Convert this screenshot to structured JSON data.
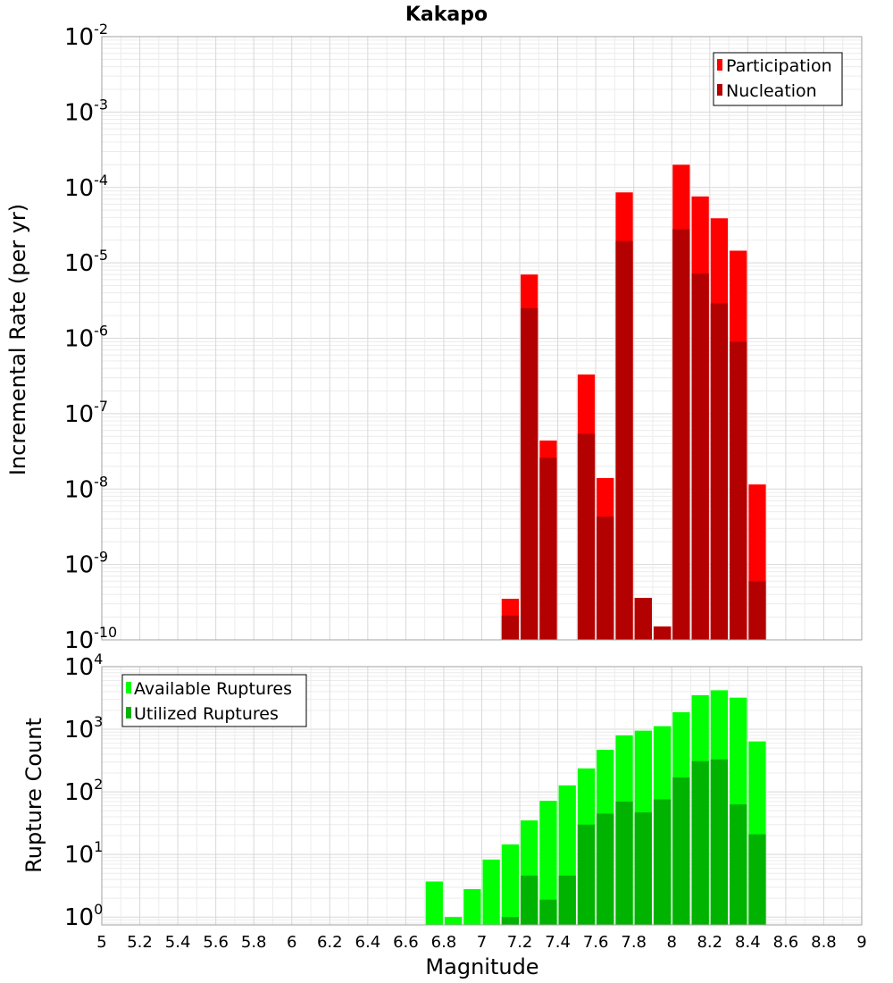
{
  "chart_data": [
    {
      "type": "bar",
      "title": "Kakapo",
      "ylabel": "Incremental Rate (per yr)",
      "yscale": "log",
      "ylim": [
        1e-10,
        0.01
      ],
      "yticks": [
        {
          "base": "10",
          "exp": "-10",
          "value": 1e-10
        },
        {
          "base": "10",
          "exp": "-9",
          "value": 1e-09
        },
        {
          "base": "10",
          "exp": "-8",
          "value": 1e-08
        },
        {
          "base": "10",
          "exp": "-7",
          "value": 1e-07
        },
        {
          "base": "10",
          "exp": "-6",
          "value": 1e-06
        },
        {
          "base": "10",
          "exp": "-5",
          "value": 1e-05
        },
        {
          "base": "10",
          "exp": "-4",
          "value": 0.0001
        },
        {
          "base": "10",
          "exp": "-3",
          "value": 0.001
        },
        {
          "base": "10",
          "exp": "-2",
          "value": 0.01
        }
      ],
      "legend_position": "top-right",
      "grid": true,
      "magnitudes": [
        7.15,
        7.25,
        7.35,
        7.55,
        7.65,
        7.75,
        7.85,
        7.95,
        8.05,
        8.15,
        8.25,
        8.35,
        8.45
      ],
      "series": [
        {
          "name": "Participation",
          "color": "#ff0000",
          "values": [
            3.5e-10,
            7e-06,
            4.4e-08,
            3.3e-07,
            1.4e-08,
            8.6e-05,
            3.6e-10,
            1.5e-10,
            0.0002,
            7.6e-05,
            3.9e-05,
            1.45e-05,
            1.15e-08
          ]
        },
        {
          "name": "Nucleation",
          "color": "#b30000",
          "values": [
            2.1e-10,
            2.5e-06,
            2.6e-08,
            5.4e-08,
            4.3e-09,
            1.95e-05,
            3.6e-10,
            1.5e-10,
            2.8e-05,
            7.2e-06,
            2.9e-06,
            9e-07,
            6e-10
          ]
        }
      ]
    },
    {
      "type": "bar",
      "xlabel": "Magnitude",
      "ylabel": "Rupture Count",
      "yscale": "log",
      "ylim": [
        0.75,
        10000
      ],
      "yticks": [
        {
          "base": "10",
          "exp": "0",
          "value": 1
        },
        {
          "base": "10",
          "exp": "1",
          "value": 10
        },
        {
          "base": "10",
          "exp": "2",
          "value": 100
        },
        {
          "base": "10",
          "exp": "3",
          "value": 1000
        },
        {
          "base": "10",
          "exp": "4",
          "value": 10000
        }
      ],
      "xlim": [
        5,
        9
      ],
      "xticks": [
        "5",
        "5.2",
        "5.4",
        "5.6",
        "5.8",
        "6",
        "6.2",
        "6.4",
        "6.6",
        "6.8",
        "7",
        "7.2",
        "7.4",
        "7.6",
        "7.8",
        "8",
        "8.2",
        "8.4",
        "8.6",
        "8.8",
        "9"
      ],
      "legend_position": "top-left",
      "grid": true,
      "magnitudes": [
        6.75,
        6.85,
        6.95,
        7.05,
        7.15,
        7.25,
        7.35,
        7.45,
        7.55,
        7.65,
        7.75,
        7.85,
        7.95,
        8.05,
        8.15,
        8.25,
        8.35,
        8.45
      ],
      "series": [
        {
          "name": "Available Ruptures",
          "color": "#00ff00",
          "values": [
            3.7,
            1,
            2.8,
            8.3,
            14.5,
            35,
            72,
            127,
            237,
            470,
            800,
            950,
            1120,
            1870,
            3500,
            4200,
            3200,
            640
          ]
        },
        {
          "name": "Utilized Ruptures",
          "color": "#00b300",
          "values": [
            null,
            null,
            null,
            null,
            1,
            4.6,
            1.9,
            4.6,
            30,
            45,
            70,
            47,
            76,
            170,
            310,
            330,
            63,
            21
          ]
        }
      ]
    }
  ]
}
